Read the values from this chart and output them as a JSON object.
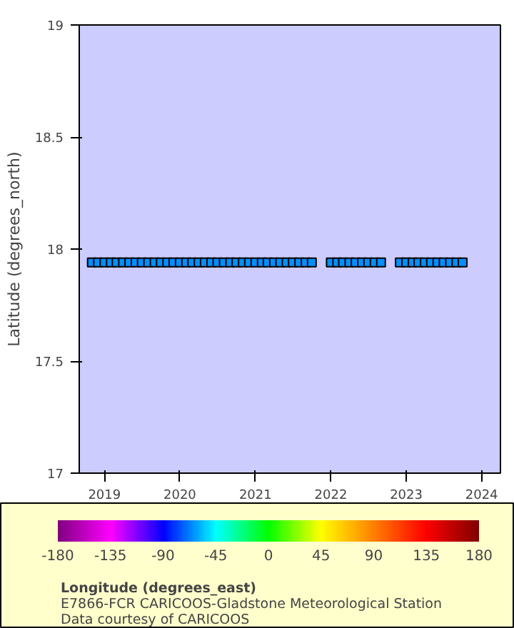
{
  "chart_data": {
    "type": "scatter",
    "ylabel": "Latitude (degrees_north)",
    "clabel": "Longitude (degrees_east)",
    "annotations": [
      "E7866-FCR CARICOOS-Gladstone Meteorological Station",
      "Data courtesy of CARICOOS"
    ],
    "x": [
      "2018-11",
      "2018-12",
      "2019-01",
      "2019-02",
      "2019-03",
      "2019-04",
      "2019-05",
      "2019-06",
      "2019-07",
      "2019-08",
      "2019-09",
      "2019-10",
      "2019-11",
      "2019-12",
      "2020-01",
      "2020-02",
      "2020-03",
      "2020-04",
      "2020-05",
      "2020-06",
      "2020-07",
      "2020-08",
      "2020-09",
      "2020-10",
      "2020-11",
      "2020-12",
      "2021-01",
      "2021-02",
      "2021-03",
      "2021-04",
      "2021-05",
      "2021-06",
      "2021-07",
      "2021-08",
      "2021-09",
      "2021-10",
      "2022-01",
      "2022-02",
      "2022-03",
      "2022-04",
      "2022-05",
      "2022-06",
      "2022-07",
      "2022-08",
      "2022-09",
      "2022-12",
      "2023-01",
      "2023-02",
      "2023-03",
      "2023-04",
      "2023-05",
      "2023-06",
      "2023-07",
      "2023-08",
      "2023-09",
      "2023-10"
    ],
    "series": [
      {
        "values": [
          17.94,
          17.94,
          17.94,
          17.94,
          17.94,
          17.94,
          17.94,
          17.94,
          17.94,
          17.94,
          17.94,
          17.94,
          17.94,
          17.94,
          17.94,
          17.94,
          17.94,
          17.94,
          17.94,
          17.94,
          17.94,
          17.94,
          17.94,
          17.94,
          17.94,
          17.94,
          17.94,
          17.94,
          17.94,
          17.94,
          17.94,
          17.94,
          17.94,
          17.94,
          17.94,
          17.94,
          17.94,
          17.94,
          17.94,
          17.94,
          17.94,
          17.94,
          17.94,
          17.94,
          17.94,
          17.94,
          17.94,
          17.94,
          17.94,
          17.94,
          17.94,
          17.94,
          17.94,
          17.94,
          17.94,
          17.94
        ],
        "cvalues": [
          -64.9,
          -64.9,
          -64.9,
          -64.9,
          -64.9,
          -64.9,
          -64.9,
          -64.9,
          -64.9,
          -64.9,
          -64.9,
          -64.9,
          -64.9,
          -64.9,
          -64.9,
          -64.9,
          -64.9,
          -64.9,
          -64.9,
          -64.9,
          -64.9,
          -64.9,
          -64.9,
          -64.9,
          -64.9,
          -64.9,
          -64.9,
          -64.9,
          -64.9,
          -64.9,
          -64.9,
          -64.9,
          -64.9,
          -64.9,
          -64.9,
          -64.9,
          -64.9,
          -64.9,
          -64.9,
          -64.9,
          -64.9,
          -64.9,
          -64.9,
          -64.9,
          -64.9,
          -64.9,
          -64.9,
          -64.9,
          -64.9,
          -64.9,
          -64.9,
          -64.9,
          -64.9,
          -64.9,
          -64.9,
          -64.9
        ]
      }
    ],
    "xlim": [
      "2018-09",
      "2024-04"
    ],
    "xticks": [
      "2019",
      "2020",
      "2021",
      "2022",
      "2023",
      "2024"
    ],
    "ylim": [
      17,
      19
    ],
    "yticks": [
      17,
      17.5,
      18,
      18.5,
      19
    ],
    "clim": [
      -180,
      180
    ],
    "cticks": [
      -180,
      -135,
      -90,
      -45,
      0,
      45,
      90,
      135,
      180
    ],
    "marker": "square",
    "grid": false
  }
}
